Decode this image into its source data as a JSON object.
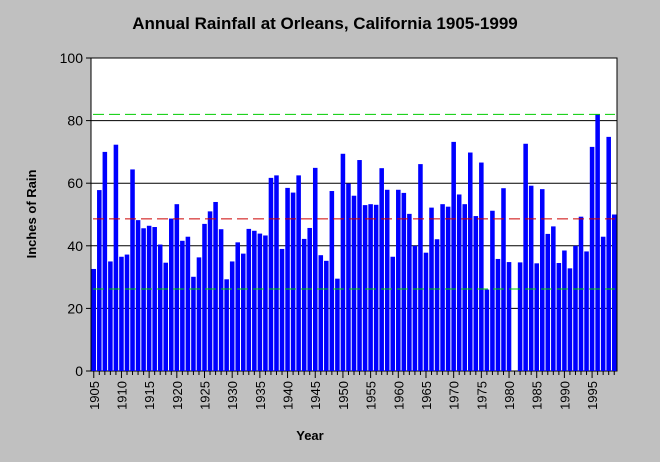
{
  "chart_data": {
    "type": "bar",
    "title": "Annual Rainfall at Orleans, California 1905-1999",
    "xlabel": "Year",
    "ylabel": "Inches of Rain",
    "ylim": [
      0,
      100
    ],
    "yticks": [
      0,
      20,
      40,
      60,
      80,
      100
    ],
    "xlim": [
      1905,
      1999
    ],
    "xtick_labels": [
      "1905",
      "1910",
      "1915",
      "1920",
      "1925",
      "1930",
      "1935",
      "1940",
      "1945",
      "1950",
      "1955",
      "1960",
      "1965",
      "1970",
      "1975",
      "1980",
      "1985",
      "1990",
      "1995"
    ],
    "grid": "horizontal",
    "legend": "none",
    "colors": {
      "bar": "#0000ff",
      "background": "#c0c0c0",
      "plot_area": "#ffffff",
      "mean_line": "#cc0000",
      "band_line": "#00cc00",
      "grid": "#000000"
    },
    "reference_lines": [
      {
        "value": 48.6,
        "color": "#cc0000",
        "style": "dashed"
      },
      {
        "value": 82,
        "color": "#00cc00",
        "style": "dashed"
      },
      {
        "value": 26.2,
        "color": "#00cc00",
        "style": "dashed"
      }
    ],
    "series": [
      {
        "years": [
          1905,
          1906,
          1907,
          1908,
          1909,
          1910,
          1911,
          1912,
          1913,
          1914,
          1915,
          1916,
          1917,
          1918,
          1919,
          1920,
          1921,
          1922,
          1923,
          1924,
          1925,
          1926,
          1927,
          1928,
          1929,
          1930,
          1931,
          1932,
          1933,
          1934,
          1935,
          1936,
          1937,
          1938,
          1939,
          1940,
          1941,
          1942,
          1943,
          1944,
          1945,
          1946,
          1947,
          1948,
          1949,
          1950,
          1951,
          1952,
          1953,
          1954,
          1955,
          1956,
          1957,
          1958,
          1959,
          1960,
          1961,
          1962,
          1963,
          1964,
          1965,
          1966,
          1967,
          1968,
          1969,
          1970,
          1971,
          1972,
          1973,
          1974,
          1975,
          1976,
          1977,
          1978,
          1979,
          1980,
          1981,
          1982,
          1983,
          1984,
          1985,
          1986,
          1987,
          1988,
          1989,
          1990,
          1991,
          1992,
          1993,
          1994,
          1995,
          1996,
          1997,
          1998,
          1999
        ],
        "values": [
          32.6,
          57.8,
          70.0,
          35.0,
          72.3,
          36.5,
          37.2,
          64.4,
          48.2,
          45.6,
          46.4,
          46.0,
          40.4,
          34.6,
          48.7,
          53.3,
          41.6,
          42.9,
          30.1,
          36.3,
          47.0,
          51.0,
          54.0,
          45.3,
          29.3,
          35.0,
          41.1,
          37.5,
          45.4,
          44.8,
          43.9,
          43.3,
          61.7,
          62.5,
          39.0,
          58.5,
          57.0,
          62.5,
          42.2,
          45.7,
          64.9,
          37.0,
          35.2,
          57.5,
          29.5,
          69.4,
          59.9,
          56.0,
          67.4,
          53.0,
          53.3,
          53.1,
          64.8,
          57.9,
          36.5,
          57.9,
          56.9,
          50.2,
          40.0,
          66.1,
          37.8,
          52.2,
          42.1,
          53.3,
          52.5,
          73.2,
          56.4,
          53.3,
          69.8,
          49.5,
          66.6,
          26.0,
          51.2,
          35.8,
          58.4,
          34.8,
          0,
          34.7,
          72.6,
          59.2,
          34.4,
          58.1,
          43.8,
          46.2,
          34.5,
          38.5,
          32.8,
          40.0,
          49.3,
          38.2,
          71.6,
          82.0,
          42.9,
          74.8,
          50.0
        ]
      }
    ]
  }
}
